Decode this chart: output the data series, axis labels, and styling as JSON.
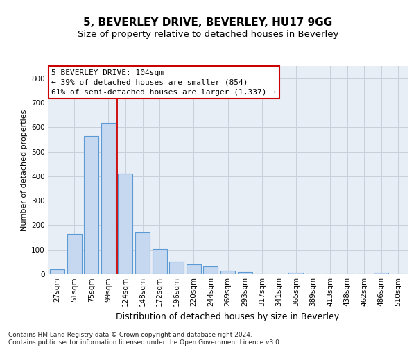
{
  "title1": "5, BEVERLEY DRIVE, BEVERLEY, HU17 9GG",
  "title2": "Size of property relative to detached houses in Beverley",
  "xlabel": "Distribution of detached houses by size in Beverley",
  "ylabel": "Number of detached properties",
  "categories": [
    "27sqm",
    "51sqm",
    "75sqm",
    "99sqm",
    "124sqm",
    "148sqm",
    "172sqm",
    "196sqm",
    "220sqm",
    "244sqm",
    "269sqm",
    "293sqm",
    "317sqm",
    "341sqm",
    "365sqm",
    "389sqm",
    "413sqm",
    "438sqm",
    "462sqm",
    "486sqm",
    "510sqm"
  ],
  "values": [
    20,
    163,
    564,
    619,
    411,
    170,
    103,
    52,
    39,
    30,
    15,
    9,
    0,
    0,
    6,
    0,
    0,
    0,
    0,
    7,
    0
  ],
  "bar_color": "#c5d8f0",
  "bar_edge_color": "#5b9bd5",
  "grid_color": "#c8d0dc",
  "annotation_line1": "5 BEVERLEY DRIVE: 104sqm",
  "annotation_line2": "← 39% of detached houses are smaller (854)",
  "annotation_line3": "61% of semi-detached houses are larger (1,337) →",
  "annotation_box_facecolor": "#ffffff",
  "annotation_box_edgecolor": "#cc0000",
  "property_line_color": "#cc0000",
  "property_line_x": 3.5,
  "footer_line1": "Contains HM Land Registry data © Crown copyright and database right 2024.",
  "footer_line2": "Contains public sector information licensed under the Open Government Licence v3.0.",
  "ylim": [
    0,
    850
  ],
  "yticks": [
    0,
    100,
    200,
    300,
    400,
    500,
    600,
    700,
    800
  ],
  "fig_background": "#ffffff",
  "plot_background": "#e8eef5",
  "title1_fontsize": 11,
  "title2_fontsize": 9.5,
  "xlabel_fontsize": 9,
  "ylabel_fontsize": 8,
  "tick_fontsize": 7.5,
  "footer_fontsize": 6.5,
  "annotation_fontsize": 8
}
